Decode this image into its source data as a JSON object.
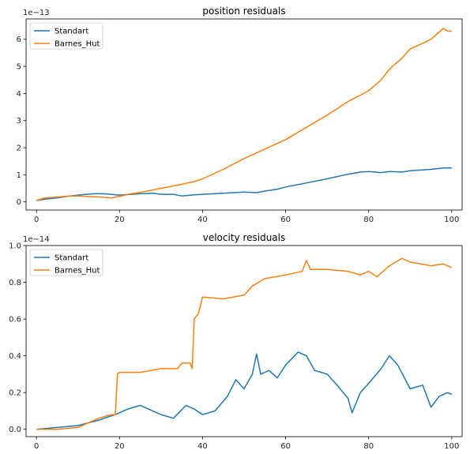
{
  "colors": {
    "standart": "#1f77b4",
    "barnes_hut": "#ff7f0e"
  },
  "chart_data": [
    {
      "type": "line",
      "title": "position residuals",
      "scale_label": "1e−13",
      "xlim": [
        -2.5,
        102.5
      ],
      "ylim": [
        -0.3,
        6.75
      ],
      "xticks": [
        "0",
        "20",
        "40",
        "60",
        "80",
        "100"
      ],
      "xtick_values": [
        0,
        20,
        40,
        60,
        80,
        100
      ],
      "yticks": [
        "0",
        "1",
        "2",
        "3",
        "4",
        "5",
        "6"
      ],
      "ytick_values": [
        0,
        1,
        2,
        3,
        4,
        5,
        6
      ],
      "legend_position": "upper-left",
      "series": [
        {
          "name": "Standart",
          "color": "#1f77b4",
          "x": [
            0,
            2,
            5,
            8,
            10,
            12,
            14,
            16,
            18,
            20,
            22,
            25,
            28,
            30,
            33,
            35,
            38,
            40,
            45,
            50,
            53,
            55,
            58,
            60,
            65,
            70,
            72,
            75,
            78,
            80,
            83,
            85,
            88,
            90,
            95,
            98,
            100
          ],
          "y": [
            0.05,
            0.1,
            0.15,
            0.22,
            0.25,
            0.28,
            0.3,
            0.3,
            0.28,
            0.25,
            0.27,
            0.3,
            0.32,
            0.28,
            0.28,
            0.22,
            0.26,
            0.28,
            0.32,
            0.36,
            0.34,
            0.4,
            0.47,
            0.55,
            0.7,
            0.85,
            0.92,
            1.02,
            1.1,
            1.12,
            1.08,
            1.12,
            1.1,
            1.15,
            1.2,
            1.25,
            1.25
          ]
        },
        {
          "name": "Barnes_Hut",
          "color": "#ff7f0e",
          "x": [
            0,
            2,
            5,
            8,
            10,
            12,
            15,
            18,
            20,
            22,
            25,
            30,
            35,
            38,
            40,
            45,
            50,
            55,
            60,
            65,
            70,
            75,
            80,
            83,
            85,
            88,
            90,
            93,
            95,
            98,
            99,
            100
          ],
          "y": [
            0.05,
            0.15,
            0.18,
            0.22,
            0.22,
            0.2,
            0.18,
            0.15,
            0.2,
            0.28,
            0.35,
            0.5,
            0.65,
            0.75,
            0.85,
            1.2,
            1.6,
            1.95,
            2.3,
            2.75,
            3.2,
            3.7,
            4.1,
            4.5,
            4.9,
            5.3,
            5.65,
            5.85,
            6.0,
            6.4,
            6.3,
            6.3
          ]
        }
      ]
    },
    {
      "type": "line",
      "title": "velocity residuals",
      "scale_label": "1e−14",
      "xlim": [
        -2.5,
        102.5
      ],
      "ylim": [
        -0.04,
        1.0
      ],
      "xticks": [
        "0",
        "20",
        "40",
        "60",
        "80",
        "100"
      ],
      "xtick_values": [
        0,
        20,
        40,
        60,
        80,
        100
      ],
      "yticks": [
        "0.0",
        "0.2",
        "0.4",
        "0.6",
        "0.8",
        "1.0"
      ],
      "ytick_values": [
        0,
        0.2,
        0.4,
        0.6,
        0.8,
        1.0
      ],
      "legend_position": "upper-left",
      "series": [
        {
          "name": "Standart",
          "color": "#1f77b4",
          "x": [
            0,
            5,
            10,
            15,
            19,
            22,
            25,
            28,
            30,
            33,
            36,
            38,
            40,
            43,
            46,
            48,
            50,
            52,
            53,
            54,
            56,
            58,
            60,
            63,
            65,
            67,
            70,
            72,
            75,
            76,
            78,
            80,
            83,
            85,
            87,
            90,
            93,
            95,
            97,
            99,
            100
          ],
          "y": [
            0.0,
            0.01,
            0.02,
            0.05,
            0.08,
            0.11,
            0.13,
            0.1,
            0.08,
            0.06,
            0.13,
            0.11,
            0.08,
            0.1,
            0.18,
            0.27,
            0.22,
            0.3,
            0.41,
            0.3,
            0.32,
            0.28,
            0.35,
            0.42,
            0.4,
            0.32,
            0.3,
            0.25,
            0.17,
            0.09,
            0.2,
            0.25,
            0.33,
            0.4,
            0.35,
            0.22,
            0.24,
            0.12,
            0.18,
            0.2,
            0.19
          ]
        },
        {
          "name": "Barnes_Hut",
          "color": "#ff7f0e",
          "x": [
            0,
            5,
            10,
            15,
            18,
            19,
            19.5,
            20,
            25,
            30,
            34,
            35,
            37,
            37.5,
            38,
            39,
            40,
            45,
            50,
            52,
            55,
            60,
            64,
            65,
            66,
            70,
            75,
            78,
            80,
            82,
            85,
            88,
            90,
            95,
            98,
            100
          ],
          "y": [
            0.0,
            0.0,
            0.01,
            0.06,
            0.08,
            0.08,
            0.3,
            0.31,
            0.31,
            0.33,
            0.33,
            0.36,
            0.36,
            0.33,
            0.6,
            0.63,
            0.72,
            0.71,
            0.73,
            0.78,
            0.82,
            0.84,
            0.86,
            0.92,
            0.87,
            0.87,
            0.86,
            0.84,
            0.86,
            0.83,
            0.89,
            0.93,
            0.91,
            0.89,
            0.9,
            0.88
          ]
        }
      ]
    }
  ]
}
